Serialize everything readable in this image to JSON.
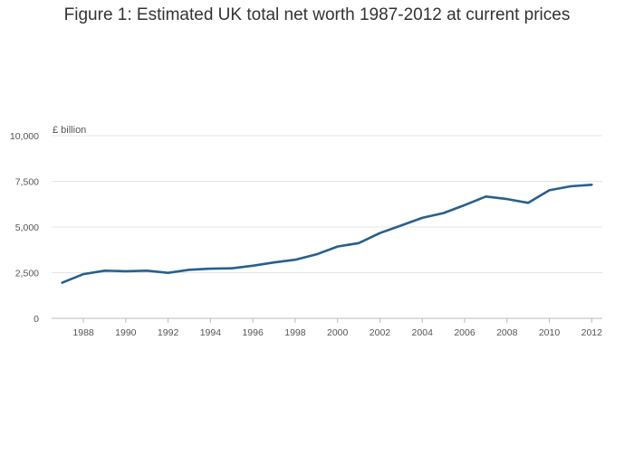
{
  "chart_data": {
    "type": "line",
    "title": "Figure 1: Estimated UK total net worth 1987-2012 at current prices",
    "xlabel": "",
    "ylabel": "£ billion",
    "ylim": [
      0,
      10000
    ],
    "xlim": [
      1986.5,
      2012.5
    ],
    "yticks": [
      0,
      2500,
      5000,
      7500,
      10000
    ],
    "ytick_labels": [
      "0",
      "2,500",
      "5,000",
      "7,500",
      "10,000"
    ],
    "xticks": [
      1988,
      1990,
      1992,
      1994,
      1996,
      1998,
      2000,
      2002,
      2004,
      2006,
      2008,
      2010,
      2012
    ],
    "xtick_labels": [
      "1988",
      "1990",
      "1992",
      "1994",
      "1996",
      "1998",
      "2000",
      "2002",
      "2004",
      "2006",
      "2008",
      "2010",
      "2012"
    ],
    "grid": true,
    "series": [
      {
        "name": "",
        "color": "#27608f",
        "x": [
          1987,
          1988,
          1989,
          1990,
          1991,
          1992,
          1993,
          1994,
          1995,
          1996,
          1997,
          1998,
          1999,
          2000,
          2001,
          2002,
          2003,
          2004,
          2005,
          2006,
          2007,
          2008,
          2009,
          2010,
          2011,
          2012
        ],
        "values": [
          1950,
          2420,
          2610,
          2580,
          2610,
          2490,
          2660,
          2720,
          2740,
          2880,
          3060,
          3210,
          3500,
          3930,
          4120,
          4670,
          5080,
          5500,
          5760,
          6200,
          6670,
          6530,
          6320,
          7010,
          7230,
          7310
        ]
      }
    ]
  },
  "colors": {
    "line": "#27608f",
    "grid": "#e4e4e4",
    "axis": "#bbbbbb",
    "tick_text": "#555555"
  }
}
